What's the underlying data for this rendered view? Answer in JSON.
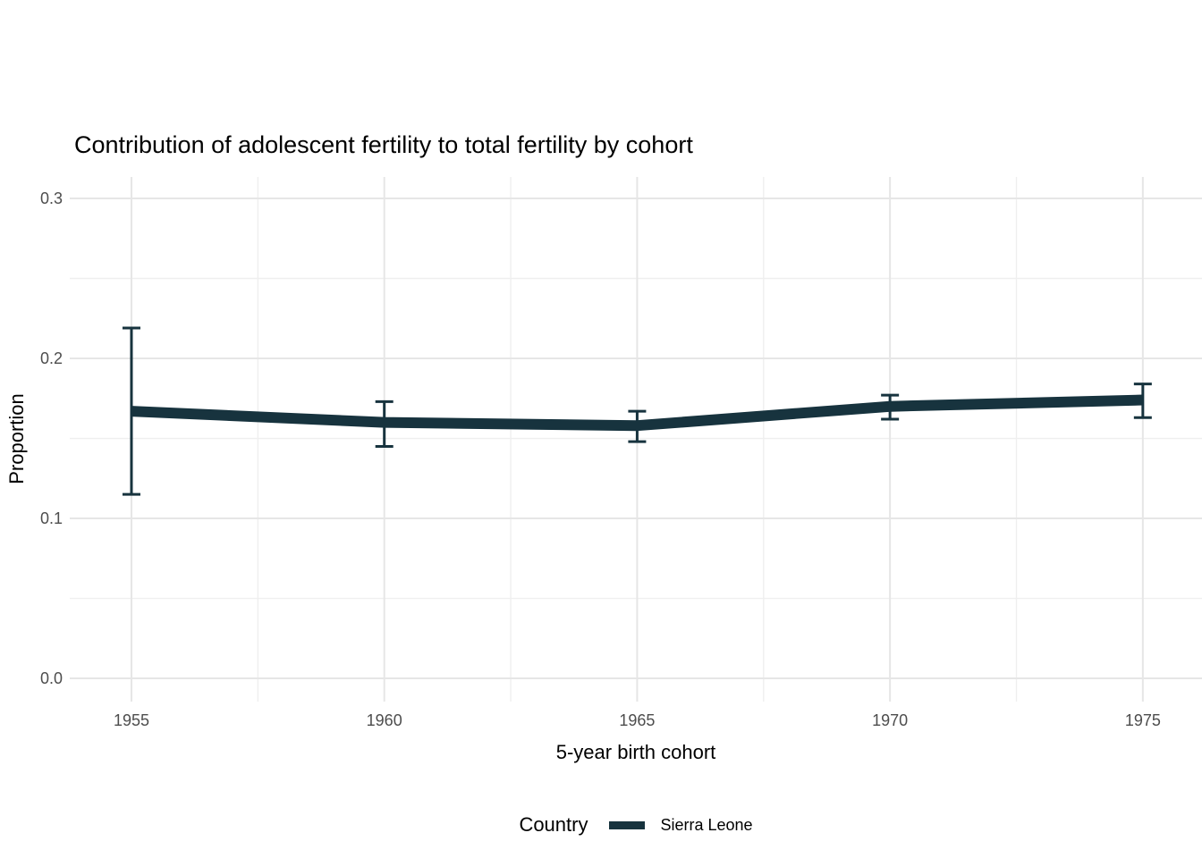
{
  "figure": {
    "title": "Contribution of adolescent fertility to total fertility by cohort",
    "x_axis_title": "5-year birth cohort",
    "y_axis_title": "Proportion",
    "legend_title": "Country",
    "legend_items": [
      {
        "label": "Sierra Leone",
        "color": "#17333e"
      }
    ]
  },
  "colors": {
    "series": "#17333e",
    "grid_major": "#e6e6e6",
    "grid_minor": "#efefef",
    "tick_label": "#4d4d4d",
    "text": "#000000",
    "background": "#ffffff"
  },
  "chart_data": {
    "type": "line",
    "title": "Contribution of adolescent fertility to total fertility by cohort",
    "xlabel": "5-year birth cohort",
    "ylabel": "Proportion",
    "legend_position": "bottom",
    "grid": true,
    "series": [
      {
        "name": "Sierra Leone",
        "color": "#17333e",
        "x": [
          1955,
          1960,
          1965,
          1970,
          1975
        ],
        "y": [
          0.167,
          0.16,
          0.158,
          0.17,
          0.174
        ],
        "error_low": [
          0.115,
          0.145,
          0.148,
          0.162,
          0.163
        ],
        "error_high": [
          0.219,
          0.173,
          0.167,
          0.177,
          0.184
        ]
      }
    ],
    "x_ticks": [
      1955,
      1960,
      1965,
      1970,
      1975
    ],
    "x_tick_labels": [
      "1955",
      "1960",
      "1965",
      "1970",
      "1975"
    ],
    "x_minor_ticks": [
      1957.5,
      1962.5,
      1967.5,
      1972.5
    ],
    "y_ticks": [
      0.0,
      0.1,
      0.2,
      0.3
    ],
    "y_tick_labels": [
      "0.0",
      "0.1",
      "0.2",
      "0.3"
    ],
    "y_minor_ticks": [
      0.05,
      0.15,
      0.25
    ],
    "x_domain": [
      1953.78,
      1976.17
    ],
    "y_domain": [
      -0.0145,
      0.3134
    ]
  }
}
